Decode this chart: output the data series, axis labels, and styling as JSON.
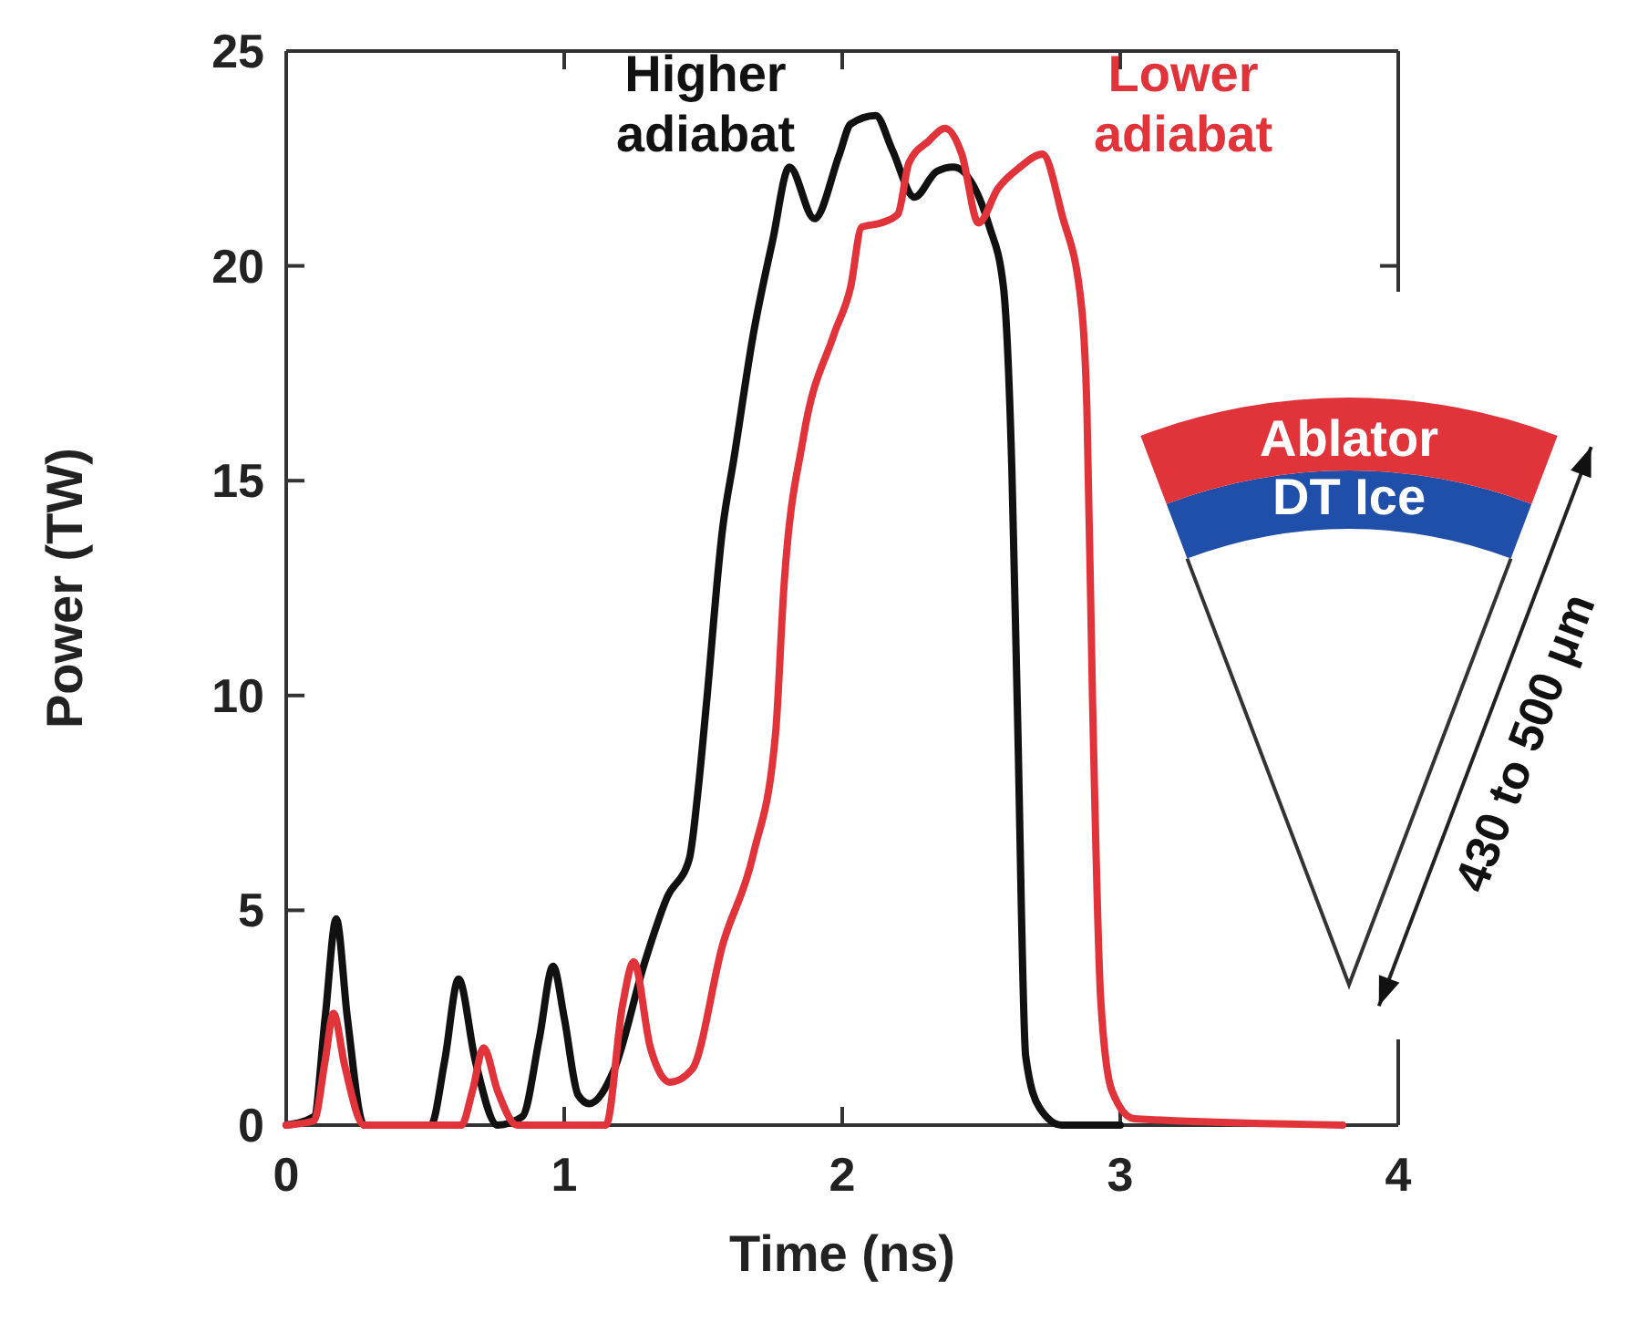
{
  "chart_data": {
    "type": "line",
    "xlabel": "Time (ns)",
    "ylabel": "Power (TW)",
    "xlim": [
      0,
      4
    ],
    "ylim": [
      0,
      25
    ],
    "xticks": [
      0,
      1,
      2,
      3,
      4
    ],
    "yticks": [
      0,
      5,
      10,
      15,
      20,
      25
    ],
    "grid": false,
    "marker": "none",
    "line_style": "solid",
    "series": [
      {
        "name": "Higher adiabat",
        "color": "#111111",
        "x": [
          0,
          0.1,
          0.14,
          0.18,
          0.22,
          0.28,
          0.52,
          0.57,
          0.62,
          0.68,
          0.76,
          0.85,
          0.91,
          0.96,
          1.0,
          1.05,
          1.09,
          1.18,
          1.29,
          1.37,
          1.45,
          1.48,
          1.51,
          1.57,
          1.61,
          1.68,
          1.75,
          1.81,
          1.9,
          1.99,
          2.03,
          2.12,
          2.18,
          2.26,
          2.34,
          2.4,
          2.53,
          2.58,
          2.61,
          2.63,
          2.66,
          2.71,
          2.79,
          3.0
        ],
        "values": [
          0,
          0.2,
          2.5,
          4.8,
          2.5,
          0,
          0,
          1.5,
          3.4,
          1.5,
          0,
          0.2,
          2.0,
          3.7,
          2.5,
          0.7,
          0.5,
          1.3,
          3.8,
          5.3,
          6.2,
          7.7,
          9.7,
          13.9,
          15.5,
          18.4,
          20.6,
          22.3,
          21.1,
          22.6,
          23.3,
          23.5,
          22.7,
          21.6,
          22.2,
          22.3,
          20.9,
          19.5,
          15.3,
          9.7,
          1.6,
          0.4,
          0,
          0
        ]
      },
      {
        "name": "Lower adiabat",
        "color": "#e0333a",
        "x": [
          0,
          0.1,
          0.14,
          0.17,
          0.21,
          0.28,
          0.63,
          0.67,
          0.71,
          0.76,
          0.83,
          1.15,
          1.21,
          1.25,
          1.31,
          1.38,
          1.46,
          1.57,
          1.68,
          1.76,
          1.79,
          1.86,
          1.97,
          2.03,
          2.07,
          2.14,
          2.2,
          2.24,
          2.31,
          2.37,
          2.43,
          2.49,
          2.56,
          2.64,
          2.72,
          2.79,
          2.86,
          2.88,
          2.9,
          2.93,
          2.97,
          3.05,
          3.8
        ],
        "values": [
          0,
          0.1,
          1.5,
          2.6,
          1.4,
          0,
          0,
          0.8,
          1.8,
          0.8,
          0,
          0,
          2.8,
          3.8,
          1.8,
          1.0,
          1.3,
          4.2,
          6.3,
          9.1,
          12.5,
          16.0,
          18.4,
          19.5,
          20.9,
          21.0,
          21.2,
          22.4,
          22.9,
          23.2,
          22.6,
          21.0,
          21.8,
          22.3,
          22.6,
          21.2,
          19.1,
          16.7,
          10.0,
          2.9,
          0.8,
          0.15,
          0
        ]
      }
    ],
    "annotations": [
      "Ablator",
      "DT Ice",
      "430 to 500 μm"
    ]
  }
}
